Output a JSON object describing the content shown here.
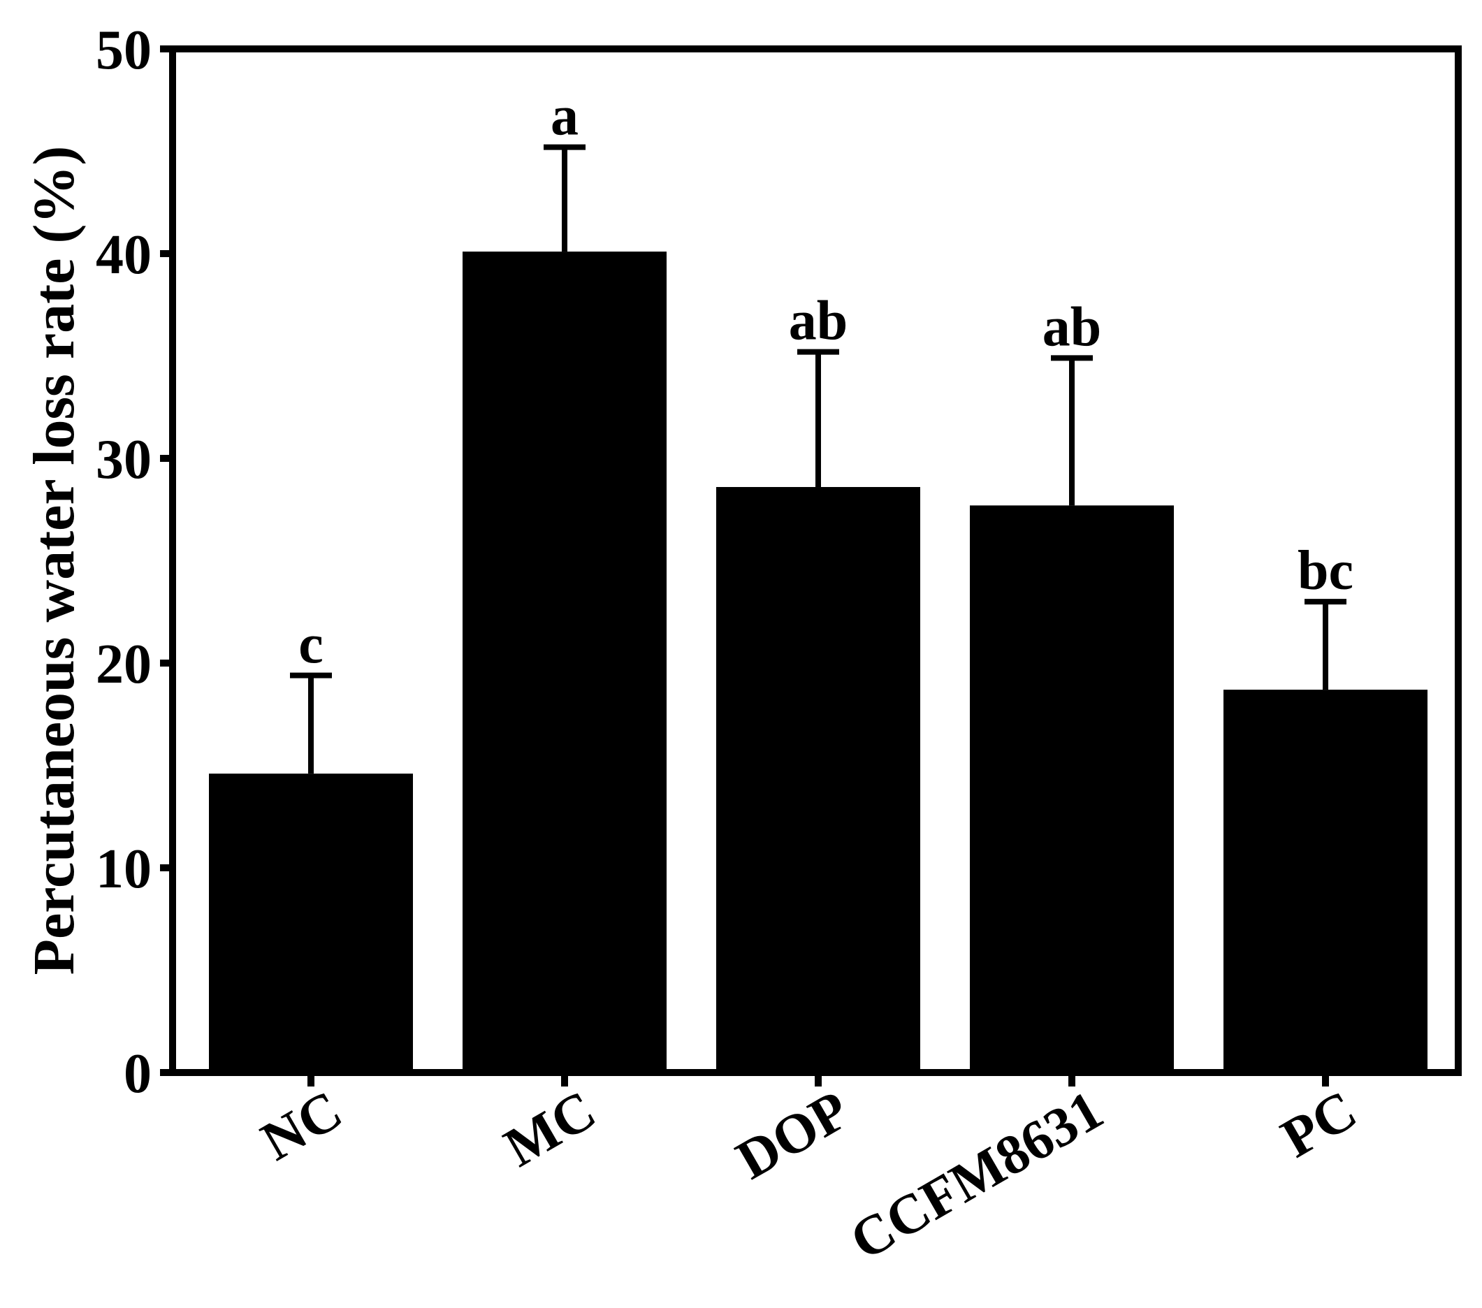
{
  "chart_data": {
    "type": "bar",
    "title": "",
    "xlabel": "",
    "ylabel": "Percutaneous water loss rate (%)",
    "categories": [
      "NC",
      "MC",
      "DOP",
      "CCFM8631",
      "PC"
    ],
    "values": [
      14.6,
      40.1,
      28.6,
      27.7,
      18.7
    ],
    "errors": [
      4.8,
      5.1,
      6.6,
      7.2,
      4.3
    ],
    "significance_letters": [
      "c",
      "a",
      "ab",
      "ab",
      "bc"
    ],
    "ylim": [
      0,
      50
    ],
    "yticks": [
      "0",
      "10",
      "20",
      "30",
      "40",
      "50"
    ],
    "bar_color": "#000000",
    "grid": false,
    "legend": "none"
  }
}
